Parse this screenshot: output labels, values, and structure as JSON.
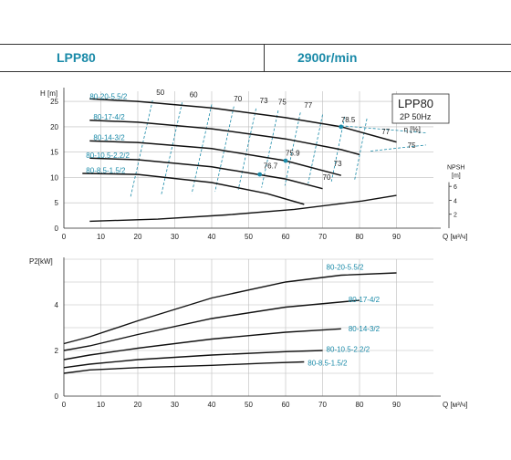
{
  "header": {
    "model": "LPP80",
    "speed": "2900r/min"
  },
  "colors": {
    "accent": "#1a8aa8",
    "curve": "#111111",
    "grid": "#bdbdbd",
    "eff": "#1a8aa8",
    "axis": "#333333"
  },
  "chart_data": [
    {
      "type": "line",
      "title": "",
      "legend_box": {
        "line1": "LPP80",
        "line2": "2P  50Hz"
      },
      "xlabel": "Q [м³/ч]",
      "ylabel": "H [m]",
      "xlim": [
        0,
        100
      ],
      "ylim": [
        0,
        27
      ],
      "x_ticks": [
        0,
        10,
        20,
        30,
        40,
        50,
        60,
        70,
        80,
        90
      ],
      "y_ticks": [
        0,
        5,
        10,
        15,
        20,
        25
      ],
      "grid": true,
      "series": [
        {
          "name": "80-20-5.5/2",
          "x": [
            7,
            20,
            40,
            60,
            75,
            90
          ],
          "y": [
            25.5,
            25.0,
            23.7,
            21.8,
            20.0,
            17.0
          ]
        },
        {
          "name": "80-17-4/2",
          "x": [
            7,
            20,
            40,
            60,
            75,
            80
          ],
          "y": [
            21.3,
            20.9,
            19.6,
            17.6,
            15.5,
            14.5
          ]
        },
        {
          "name": "80-14-3/2",
          "x": [
            7,
            20,
            40,
            60,
            75
          ],
          "y": [
            17.2,
            16.9,
            15.7,
            13.3,
            10.4
          ]
        },
        {
          "name": "80-10.5-2.2/2",
          "x": [
            7,
            20,
            40,
            60,
            70
          ],
          "y": [
            13.8,
            13.5,
            12.1,
            9.7,
            7.8
          ]
        },
        {
          "name": "80-8.5-1.5/2",
          "x": [
            5,
            20,
            40,
            55,
            65
          ],
          "y": [
            10.8,
            10.6,
            9.0,
            6.8,
            4.7
          ]
        }
      ],
      "npsh": {
        "label": "NPSH",
        "unit": "[m]",
        "ticks": [
          2,
          4,
          6
        ],
        "x": [
          0,
          20,
          40,
          60,
          80,
          90
        ],
        "y": [
          1.0,
          1.3,
          1.9,
          2.7,
          3.9,
          4.7
        ]
      },
      "efficiency": {
        "label": "η [%]",
        "iso_labels": [
          "50",
          "60",
          "70",
          "73",
          "75",
          "77",
          "78.5",
          "77",
          "75",
          "76.7",
          "75.9",
          "73",
          "70"
        ],
        "bep_points": [
          {
            "x": 75,
            "y": 20.0,
            "label": "78.5"
          },
          {
            "x": 60,
            "y": 13.3,
            "label": "75.9"
          },
          {
            "x": 53,
            "y": 10.6,
            "label": "76.7"
          }
        ]
      }
    },
    {
      "type": "line",
      "title": "",
      "xlabel": "Q [м³/ч]",
      "ylabel": "P2[kW]",
      "xlim": [
        0,
        100
      ],
      "ylim": [
        0,
        6
      ],
      "x_ticks": [
        0,
        10,
        20,
        30,
        40,
        50,
        60,
        70,
        80,
        90
      ],
      "y_ticks": [
        0,
        2,
        4
      ],
      "grid": true,
      "series": [
        {
          "name": "80-20-5.5/2",
          "x": [
            0,
            7,
            20,
            40,
            60,
            75,
            90
          ],
          "y": [
            2.3,
            2.6,
            3.3,
            4.3,
            5.0,
            5.3,
            5.4
          ]
        },
        {
          "name": "80-17-4/2",
          "x": [
            0,
            7,
            20,
            40,
            60,
            80
          ],
          "y": [
            2.0,
            2.2,
            2.7,
            3.4,
            3.9,
            4.2
          ]
        },
        {
          "name": "80-14-3/2",
          "x": [
            0,
            7,
            20,
            40,
            60,
            75
          ],
          "y": [
            1.6,
            1.8,
            2.1,
            2.5,
            2.8,
            2.95
          ]
        },
        {
          "name": "80-10.5-2.2/2",
          "x": [
            0,
            7,
            20,
            40,
            60,
            70
          ],
          "y": [
            1.25,
            1.4,
            1.6,
            1.8,
            1.95,
            2.0
          ]
        },
        {
          "name": "80-8.5-1.5/2",
          "x": [
            0,
            7,
            20,
            40,
            55,
            65
          ],
          "y": [
            1.0,
            1.15,
            1.25,
            1.35,
            1.45,
            1.5
          ]
        }
      ]
    }
  ]
}
